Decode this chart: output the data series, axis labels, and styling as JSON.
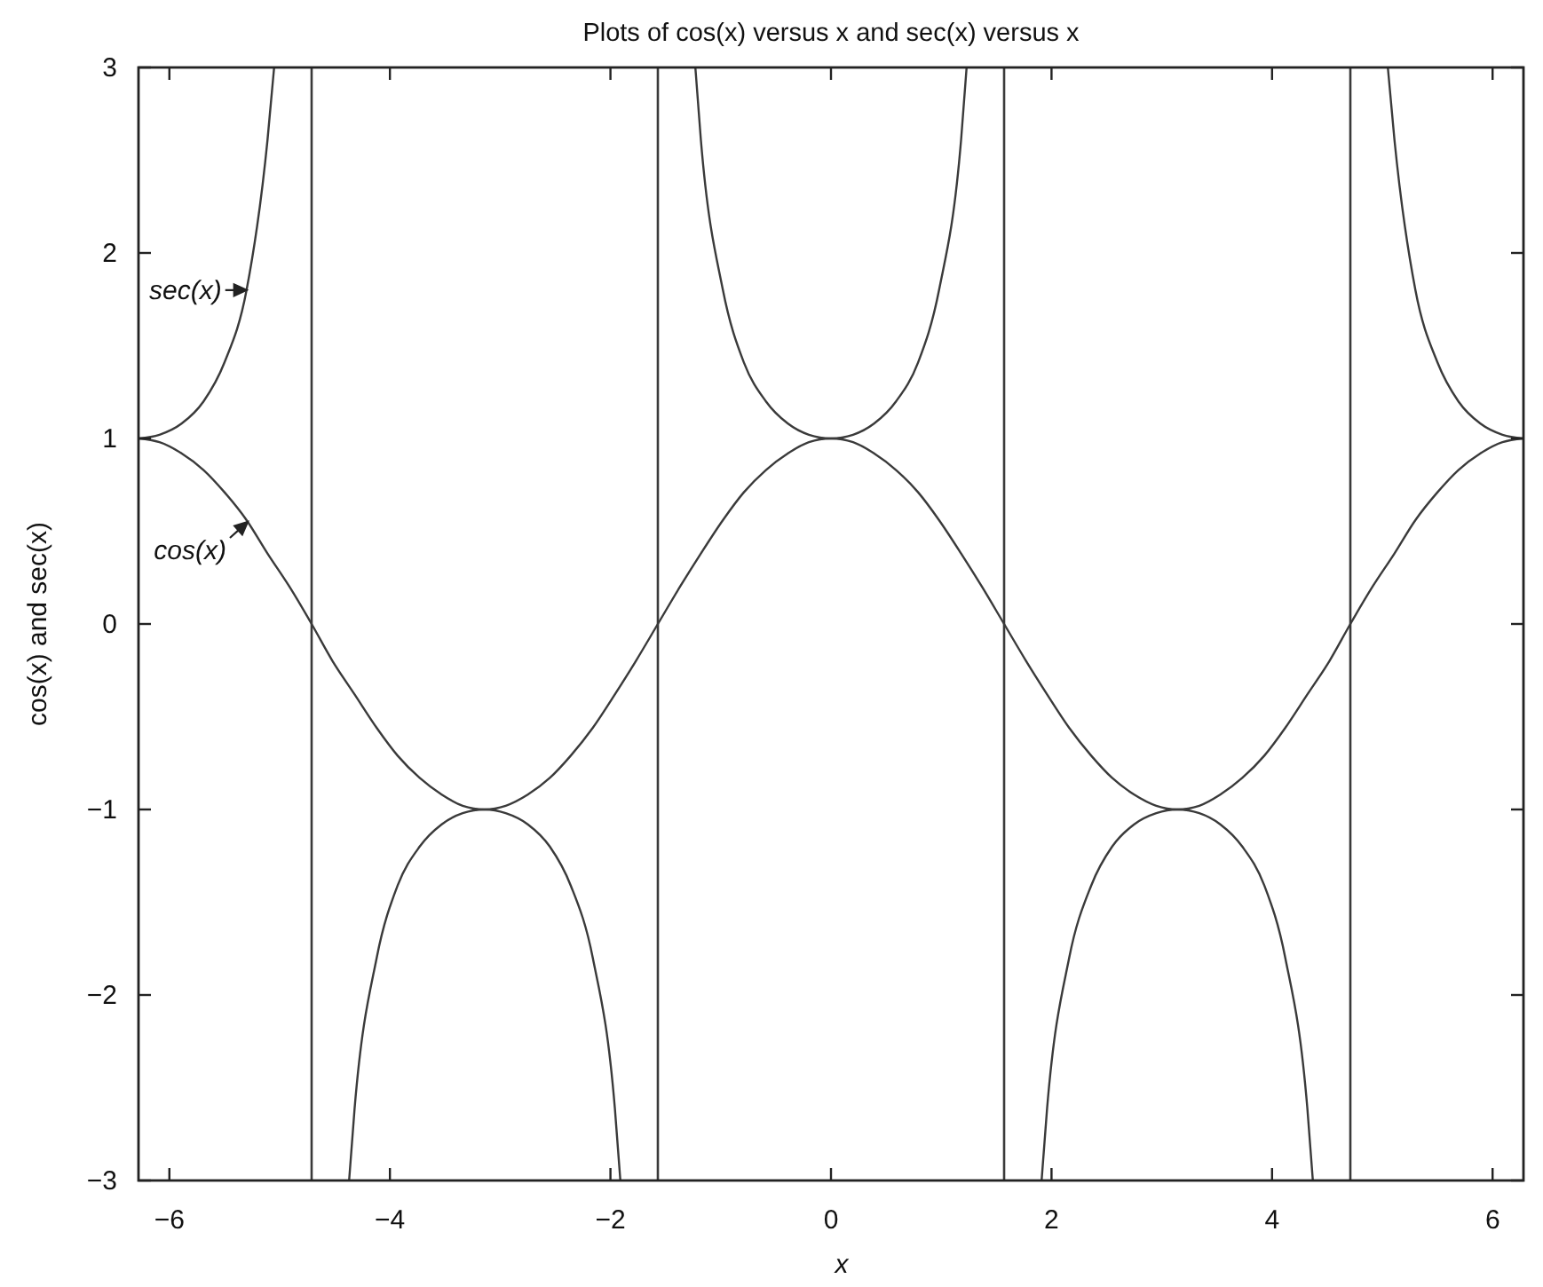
{
  "chart_data": {
    "type": "line",
    "title": "Plots of cos(x) versus x and sec(x) versus x",
    "xlabel": "x",
    "ylabel": "cos(x) and sec(x)",
    "xlim": [
      -6.28,
      6.28
    ],
    "ylim": [
      -3,
      3
    ],
    "xticks": [
      -6,
      -4,
      -2,
      0,
      2,
      4,
      6
    ],
    "yticks": [
      -3,
      -2,
      -1,
      0,
      1,
      2,
      3
    ],
    "series": [
      {
        "color": "#3a3a3a",
        "x": [
          -6.28,
          -6.09,
          -5.89,
          -5.69,
          -5.5,
          -5.3,
          -5.11,
          -4.91,
          -4.71,
          -4.52,
          -4.32,
          -4.12,
          -3.93,
          -3.73,
          -3.53,
          -3.34,
          -3.14,
          -2.95,
          -2.75,
          -2.55,
          -2.36,
          -2.16,
          -1.96,
          -1.77,
          -1.57,
          -1.37,
          -1.18,
          -0.98,
          -0.79,
          -0.59,
          -0.39,
          -0.2,
          0,
          0.2,
          0.39,
          0.59,
          0.79,
          0.98,
          1.18,
          1.37,
          1.57,
          1.77,
          1.96,
          2.16,
          2.36,
          2.55,
          2.75,
          2.95,
          3.14,
          3.34,
          3.53,
          3.73,
          3.93,
          4.12,
          4.32,
          4.52,
          4.71,
          4.91,
          5.11,
          5.3,
          5.5,
          5.69,
          5.89,
          6.09,
          6.28
        ],
        "values": [
          1,
          0.98,
          0.92,
          0.83,
          0.71,
          0.56,
          0.38,
          0.2,
          0,
          -0.2,
          -0.38,
          -0.56,
          -0.71,
          -0.83,
          -0.92,
          -0.98,
          -1,
          -0.98,
          -0.92,
          -0.83,
          -0.71,
          -0.56,
          -0.38,
          -0.2,
          0,
          0.2,
          0.38,
          0.56,
          0.71,
          0.83,
          0.92,
          0.98,
          1,
          0.98,
          0.92,
          0.83,
          0.71,
          0.56,
          0.38,
          0.2,
          0,
          -0.2,
          -0.38,
          -0.56,
          -0.71,
          -0.83,
          -0.92,
          -0.98,
          -1,
          -0.98,
          -0.92,
          -0.83,
          -0.71,
          -0.56,
          -0.38,
          -0.2,
          0,
          0.2,
          0.38,
          0.56,
          0.71,
          0.83,
          0.92,
          0.98,
          1
        ]
      },
      {
        "color": "#3a3a3a",
        "x": [
          -6.28,
          -6.09,
          -5.89,
          -5.69,
          -5.5,
          -5.3,
          -5.11,
          -5.05,
          -4.71,
          -4.37,
          -4.32,
          -4.12,
          -3.93,
          -3.73,
          -3.53,
          -3.34,
          -3.14,
          -2.95,
          -2.75,
          -2.55,
          -2.36,
          -2.16,
          -1.96,
          -1.91,
          -1.57,
          -1.23,
          -1.18,
          -0.98,
          -0.79,
          -0.59,
          -0.39,
          -0.2,
          0,
          0.2,
          0.39,
          0.59,
          0.79,
          0.98,
          1.18,
          1.23,
          1.57,
          1.91,
          1.96,
          2.16,
          2.36,
          2.55,
          2.75,
          2.95,
          3.14,
          3.34,
          3.53,
          3.73,
          3.93,
          4.12,
          4.32,
          4.37,
          4.71,
          5.05,
          5.11,
          5.3,
          5.5,
          5.69,
          5.89,
          6.09,
          6.28
        ],
        "values": [
          1,
          1.02,
          1.08,
          1.2,
          1.41,
          1.8,
          2.61,
          3,
          null,
          -3,
          -2.61,
          -1.8,
          -1.41,
          -1.2,
          -1.08,
          -1.02,
          -1,
          -1.02,
          -1.08,
          -1.2,
          -1.41,
          -1.8,
          -2.61,
          -3,
          null,
          3,
          2.61,
          1.8,
          1.41,
          1.2,
          1.08,
          1.02,
          1,
          1.02,
          1.08,
          1.2,
          1.41,
          1.8,
          2.61,
          3,
          null,
          -3,
          -2.61,
          -1.8,
          -1.41,
          -1.2,
          -1.08,
          -1.02,
          -1,
          -1.02,
          -1.08,
          -1.2,
          -1.41,
          -1.8,
          -2.61,
          -3,
          null,
          3,
          2.61,
          1.8,
          1.41,
          1.2,
          1.08,
          1.02,
          1
        ]
      }
    ],
    "ref_lines": [
      {
        "axis": "x",
        "value": -4.71,
        "color": "#3a3a3a"
      },
      {
        "axis": "x",
        "value": -1.57,
        "color": "#3a3a3a"
      },
      {
        "axis": "x",
        "value": 1.57,
        "color": "#3a3a3a"
      },
      {
        "axis": "x",
        "value": 4.71,
        "color": "#3a3a3a"
      }
    ],
    "annotations": [
      {
        "text": "sec(x)",
        "x": -5.3,
        "y": 1.8
      },
      {
        "text": "cos(x)",
        "x": -5.29,
        "y": 0.55
      }
    ]
  }
}
